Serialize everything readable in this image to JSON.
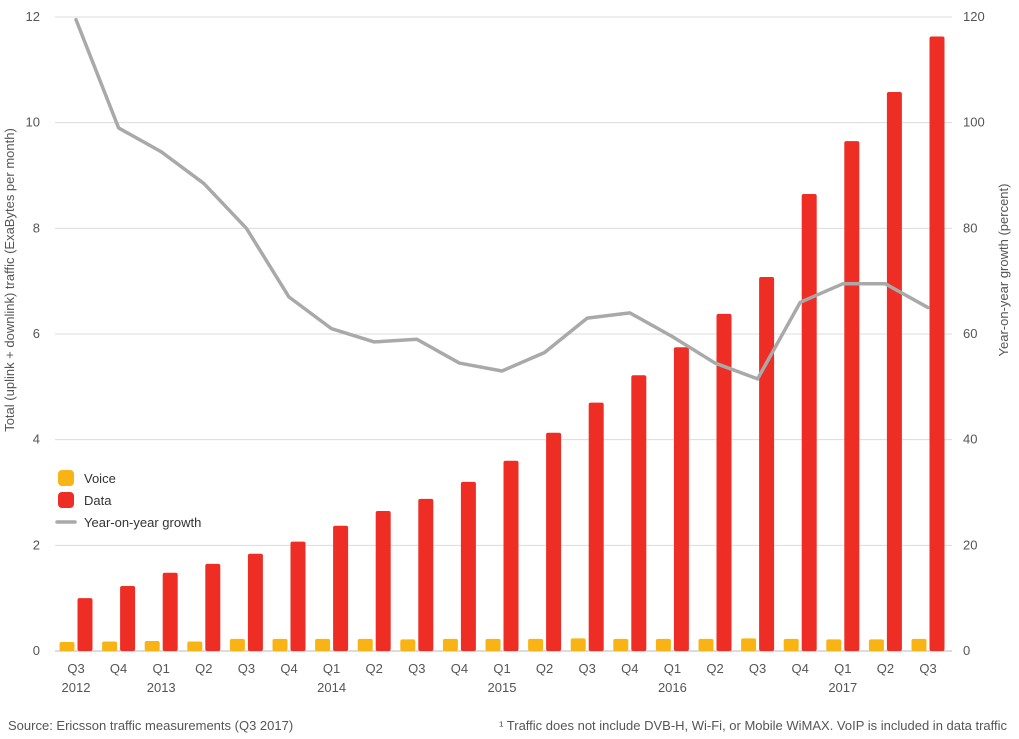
{
  "chart_data": {
    "type": "bar",
    "categories": [
      {
        "quarter": "Q3",
        "year": "2012"
      },
      {
        "quarter": "Q4",
        "year": ""
      },
      {
        "quarter": "Q1",
        "year": "2013"
      },
      {
        "quarter": "Q2",
        "year": ""
      },
      {
        "quarter": "Q3",
        "year": ""
      },
      {
        "quarter": "Q4",
        "year": ""
      },
      {
        "quarter": "Q1",
        "year": "2014"
      },
      {
        "quarter": "Q2",
        "year": ""
      },
      {
        "quarter": "Q3",
        "year": ""
      },
      {
        "quarter": "Q4",
        "year": ""
      },
      {
        "quarter": "Q1",
        "year": "2015"
      },
      {
        "quarter": "Q2",
        "year": ""
      },
      {
        "quarter": "Q3",
        "year": ""
      },
      {
        "quarter": "Q4",
        "year": ""
      },
      {
        "quarter": "Q1",
        "year": "2016"
      },
      {
        "quarter": "Q2",
        "year": ""
      },
      {
        "quarter": "Q3",
        "year": ""
      },
      {
        "quarter": "Q4",
        "year": ""
      },
      {
        "quarter": "Q1",
        "year": "2017"
      },
      {
        "quarter": "Q2",
        "year": ""
      },
      {
        "quarter": "Q3",
        "year": ""
      }
    ],
    "series": [
      {
        "name": "Voice",
        "kind": "bar",
        "axis": "left",
        "color": "#F8B414",
        "values": [
          0.17,
          0.18,
          0.19,
          0.18,
          0.23,
          0.23,
          0.23,
          0.23,
          0.22,
          0.23,
          0.23,
          0.23,
          0.24,
          0.23,
          0.23,
          0.23,
          0.24,
          0.23,
          0.22,
          0.22,
          0.23
        ]
      },
      {
        "name": "Data",
        "kind": "bar",
        "axis": "right-of-pair",
        "color": "#EE2D24",
        "values": [
          1.0,
          1.23,
          1.48,
          1.65,
          1.84,
          2.07,
          2.37,
          2.65,
          2.88,
          3.2,
          3.6,
          4.13,
          4.7,
          5.22,
          5.75,
          6.38,
          7.08,
          8.65,
          9.65,
          10.58,
          11.63
        ]
      },
      {
        "name": "Year-on-year growth",
        "kind": "line",
        "axis": "right",
        "color": "#A9A9A9",
        "values": [
          119.5,
          99,
          94.5,
          88.5,
          80,
          67,
          61,
          58.5,
          59,
          54.5,
          53,
          56.5,
          63,
          64,
          59.5,
          54.5,
          51.5,
          66,
          69.5,
          69.5,
          65
        ]
      }
    ],
    "ylabel": "Total (uplink + downlink) traffic (ExaBytes per month)",
    "y2label": "Year-on-year growth (percent)",
    "ylim": [
      0,
      12
    ],
    "y2lim": [
      0,
      120
    ],
    "yticks": [
      "0",
      "2",
      "4",
      "6",
      "8",
      "10",
      "12"
    ],
    "y2ticks": [
      "0",
      "20",
      "40",
      "60",
      "80",
      "100",
      "120"
    ],
    "grid": true,
    "legend_position": "left, lower-middle"
  },
  "legend": {
    "voice_label": "Voice",
    "data_label": "Data",
    "growth_label": "Year-on-year growth"
  },
  "footer": {
    "source": "Source: Ericsson traffic measurements (Q3 2017)",
    "footnote": "¹ Traffic does not include DVB-H, Wi-Fi, or Mobile WiMAX. VoIP is included in data traffic"
  }
}
